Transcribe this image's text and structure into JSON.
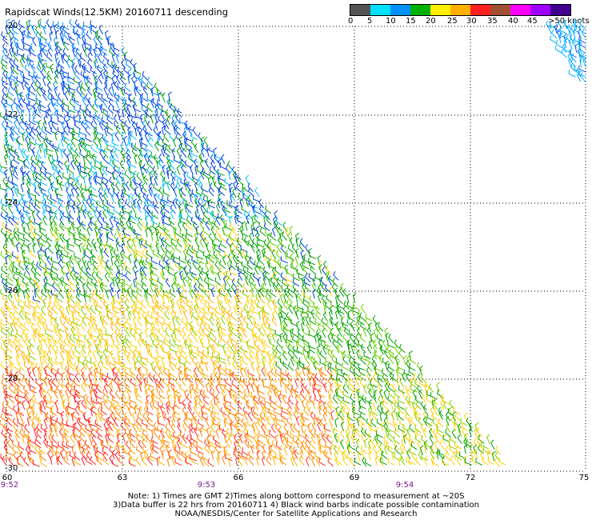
{
  "title": "Rapidscat Winds(12.5KM) 20160711 descending",
  "legend": {
    "colors": [
      "#606060",
      "#a8a8a8",
      "#00e0ff",
      "#0080ff",
      "#0000c8",
      "#00b000",
      "#80e000",
      "#ffff00",
      "#ffc000",
      "#ff8000",
      "#ff0000",
      "#b00000",
      "#804020",
      "#c08060",
      "#ff00ff",
      "#b000ff",
      "#8000c0",
      "#400080"
    ],
    "labels": [
      "0",
      "5",
      "10",
      "15",
      "20",
      "25",
      "30",
      "35",
      "40",
      "45",
      ">50 knots"
    ]
  },
  "map": {
    "lat_labels": [
      "-20",
      "-22",
      "-24",
      "-26",
      "-28",
      "-30"
    ],
    "lon_labels": [
      "60",
      "63",
      "66",
      "69",
      "72",
      "75"
    ],
    "time_labels": [
      "9:52",
      "9:53",
      "9:54"
    ],
    "lat_range": [
      -30,
      -20
    ],
    "lon_range": [
      60,
      75
    ]
  },
  "notes": [
    "Note: 1) Times are GMT 2)Times along bottom correspond to measurement at ~20S",
    "3)Data buffer is 22 hrs from 20160711 4) Black wind barbs indicate possible contamination",
    "NOAA/NESDIS/Center for Satellite Applications and Research"
  ]
}
